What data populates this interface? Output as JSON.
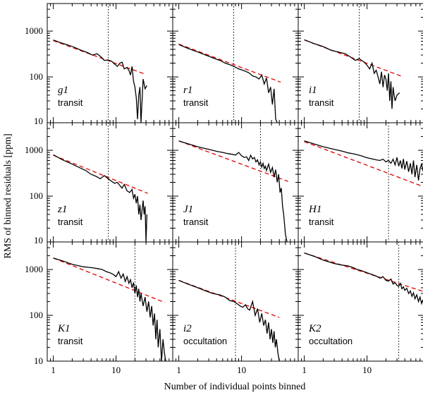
{
  "chart_data": {
    "type": "line",
    "layout": "3x3 grid of panels, shared axes",
    "xlabel": "Number of individual points binned",
    "ylabel": "RMS of binned residuals [ppm]",
    "xscale": "log",
    "yscale": "log",
    "xlim": [
      0.8,
      80
    ],
    "ylim": [
      10,
      4000
    ],
    "xticks": [
      1,
      10
    ],
    "xtick_labels": [
      "1",
      "10"
    ],
    "yticks": [
      10,
      100,
      1000
    ],
    "ytick_labels": [
      "10",
      "100",
      "1000"
    ],
    "legend": "none",
    "series_styles": {
      "measured": "solid black line",
      "white_noise": "dashed red line",
      "bin_limit": "dotted vertical black line"
    },
    "panels": [
      {
        "band": "g1",
        "kind": "transit",
        "bin_limit": 7.5,
        "white_noise": {
          "x": [
            1,
            30
          ],
          "y": [
            620,
            113
          ]
        },
        "measured": {
          "x": [
            1,
            1.3,
            1.7,
            2.2,
            2.8,
            3.5,
            4.2,
            5,
            5.8,
            6.5,
            7.5,
            8.5,
            9.5,
            10.5,
            11.5,
            12.5,
            13.5,
            15,
            16,
            17,
            18,
            19,
            20,
            21,
            22,
            23,
            24,
            25,
            27,
            29,
            31
          ],
          "y": [
            640,
            560,
            500,
            440,
            380,
            340,
            300,
            320,
            270,
            230,
            235,
            220,
            190,
            170,
            200,
            210,
            150,
            160,
            140,
            110,
            170,
            80,
            60,
            35,
            12,
            40,
            60,
            10,
            90,
            55,
            65
          ]
        }
      },
      {
        "band": "r1",
        "kind": "transit",
        "bin_limit": 7.5,
        "white_noise": {
          "x": [
            1,
            42
          ],
          "y": [
            520,
            77
          ]
        },
        "measured": {
          "x": [
            1,
            1.4,
            2,
            2.7,
            3.5,
            4.5,
            5.5,
            6.5,
            7.5,
            9,
            10.5,
            12,
            13.5,
            15,
            17,
            19,
            21,
            23,
            25,
            27,
            29,
            31,
            33,
            35,
            37
          ],
          "y": [
            510,
            420,
            350,
            300,
            260,
            230,
            200,
            185,
            170,
            150,
            140,
            130,
            120,
            105,
            100,
            90,
            110,
            70,
            95,
            45,
            60,
            25,
            55,
            12,
            10
          ]
        }
      },
      {
        "band": "i1",
        "kind": "transit",
        "bin_limit": 7.5,
        "white_noise": {
          "x": [
            1,
            38
          ],
          "y": [
            640,
            100
          ]
        },
        "measured": {
          "x": [
            1,
            1.4,
            2,
            2.7,
            3.5,
            4.5,
            5.5,
            6.5,
            7.5,
            9,
            10,
            11,
            12,
            13,
            14,
            15,
            16,
            17,
            18,
            19,
            20,
            21,
            22,
            23,
            24,
            25,
            26,
            27,
            28,
            30,
            33
          ],
          "y": [
            650,
            540,
            460,
            380,
            350,
            320,
            270,
            230,
            250,
            210,
            180,
            150,
            200,
            120,
            140,
            100,
            70,
            130,
            60,
            110,
            90,
            50,
            120,
            30,
            80,
            20,
            60,
            40,
            30,
            40,
            45
          ]
        }
      },
      {
        "band": "z1",
        "kind": "transit",
        "bin_limit": 7.5,
        "white_noise": {
          "x": [
            1,
            32
          ],
          "y": [
            780,
            115
          ]
        },
        "measured": {
          "x": [
            1,
            1.4,
            2,
            2.6,
            3.3,
            4,
            4.8,
            5.6,
            6.5,
            7.5,
            8.5,
            9.5,
            10.5,
            11.5,
            12.5,
            13.5,
            15,
            16.5,
            18,
            19,
            20,
            21,
            22,
            23,
            24,
            25,
            26,
            27,
            28,
            29,
            30,
            31
          ],
          "y": [
            800,
            620,
            500,
            420,
            360,
            300,
            270,
            240,
            280,
            240,
            210,
            190,
            200,
            170,
            150,
            180,
            130,
            120,
            140,
            90,
            110,
            70,
            100,
            40,
            65,
            30,
            50,
            80,
            40,
            60,
            10,
            40
          ]
        }
      },
      {
        "band": "J1",
        "kind": "transit",
        "bin_limit": 20,
        "white_noise": {
          "x": [
            1,
            55
          ],
          "y": [
            1600,
            210
          ]
        },
        "measured": {
          "x": [
            1,
            1.5,
            2,
            3,
            4,
            5,
            6,
            7,
            8,
            9,
            10,
            11,
            12,
            13,
            14,
            15,
            16,
            17,
            18,
            19,
            20,
            21,
            22,
            23,
            24,
            25,
            27,
            29,
            31,
            33,
            35,
            37,
            39,
            41,
            43,
            45,
            47,
            50,
            53
          ],
          "y": [
            1600,
            1350,
            1200,
            1050,
            950,
            900,
            850,
            820,
            790,
            900,
            760,
            700,
            720,
            600,
            780,
            650,
            700,
            560,
            620,
            480,
            560,
            430,
            520,
            400,
            450,
            360,
            500,
            330,
            420,
            260,
            380,
            200,
            300,
            120,
            150,
            60,
            40,
            15,
            10
          ]
        }
      },
      {
        "band": "H1",
        "kind": "transit",
        "bin_limit": 22,
        "white_noise": {
          "x": [
            1,
            80
          ],
          "y": [
            1550,
            160
          ]
        },
        "measured": {
          "x": [
            1,
            1.5,
            2,
            3,
            4,
            5,
            6,
            7,
            8,
            9,
            10,
            12,
            14,
            16,
            18,
            20,
            22,
            24,
            26,
            28,
            30,
            32,
            34,
            36,
            38,
            40,
            43,
            46,
            49,
            52,
            55,
            58,
            62,
            66,
            70,
            74,
            78
          ],
          "y": [
            1600,
            1350,
            1200,
            1050,
            960,
            880,
            840,
            800,
            760,
            720,
            690,
            650,
            620,
            600,
            640,
            560,
            600,
            520,
            640,
            480,
            700,
            450,
            600,
            400,
            650,
            380,
            580,
            340,
            520,
            300,
            600,
            260,
            480,
            220,
            400,
            500,
            350
          ]
        }
      },
      {
        "band": "K1",
        "kind": "transit",
        "bin_limit": 20,
        "white_noise": {
          "x": [
            1,
            60
          ],
          "y": [
            1780,
            190
          ]
        },
        "measured": {
          "x": [
            1,
            1.5,
            2,
            3,
            4,
            5,
            6,
            7,
            8,
            9,
            10,
            11,
            12,
            13,
            14,
            15,
            16,
            17,
            18,
            19,
            20,
            21,
            22,
            23,
            24,
            25,
            27,
            29,
            31,
            33,
            35,
            37,
            39,
            41,
            43,
            45,
            47,
            50,
            53,
            56,
            59,
            62
          ],
          "y": [
            1780,
            1500,
            1300,
            1150,
            1100,
            1050,
            1000,
            900,
            850,
            780,
            700,
            900,
            650,
            800,
            550,
            700,
            500,
            600,
            400,
            520,
            300,
            450,
            250,
            380,
            200,
            300,
            160,
            250,
            120,
            200,
            90,
            160,
            60,
            110,
            30,
            80,
            20,
            50,
            10,
            30,
            15,
            10
          ]
        }
      },
      {
        "band": "i2",
        "kind": "occultation",
        "bin_limit": 8,
        "white_noise": {
          "x": [
            1,
            40
          ],
          "y": [
            580,
            90
          ]
        },
        "measured": {
          "x": [
            1,
            1.4,
            2,
            2.7,
            3.5,
            4.5,
            5.5,
            6.5,
            7.5,
            8.5,
            9.5,
            10.5,
            11.5,
            12.5,
            13.5,
            15,
            16.5,
            18,
            19.5,
            21,
            22.5,
            24,
            25.5,
            27,
            28.5,
            30,
            31.5,
            33,
            34.5,
            36,
            38,
            40
          ],
          "y": [
            580,
            480,
            400,
            340,
            300,
            280,
            250,
            210,
            200,
            180,
            160,
            150,
            170,
            140,
            130,
            200,
            100,
            140,
            70,
            110,
            60,
            80,
            40,
            70,
            30,
            50,
            25,
            45,
            20,
            30,
            15,
            10
          ]
        }
      },
      {
        "band": "K2",
        "kind": "occultation",
        "bin_limit": 32,
        "white_noise": {
          "x": [
            1,
            80
          ],
          "y": [
            2300,
            330
          ]
        },
        "measured": {
          "x": [
            1,
            1.5,
            2,
            3,
            4,
            5,
            6,
            7,
            8,
            9,
            10,
            12,
            14,
            16,
            18,
            20,
            22,
            24,
            26,
            28,
            30,
            32,
            34,
            36,
            38,
            40,
            43,
            46,
            49,
            52,
            55,
            58,
            62,
            66,
            70,
            74,
            78
          ],
          "y": [
            2300,
            1900,
            1600,
            1350,
            1250,
            1200,
            1100,
            1000,
            950,
            900,
            850,
            780,
            720,
            650,
            700,
            580,
            560,
            620,
            480,
            520,
            450,
            430,
            500,
            380,
            420,
            350,
            390,
            300,
            340,
            260,
            310,
            230,
            280,
            200,
            250,
            180,
            220
          ]
        }
      }
    ]
  }
}
